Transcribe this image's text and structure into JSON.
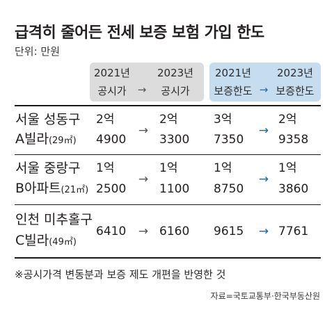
{
  "title": "급격히 줄어든 전세 보증 보험 가입 한도",
  "unit": "단위: 만원",
  "header": {
    "col1": [
      "2021년",
      "공시가"
    ],
    "col2": [
      "2023년",
      "공시가"
    ],
    "col3": [
      "2021년",
      "보증한도"
    ],
    "col4": [
      "2023년",
      "보증한도"
    ],
    "arrow": "→"
  },
  "arrow": "→",
  "chart_data": {
    "type": "table",
    "columns": [
      "2021년 공시가",
      "2023년 공시가",
      "2021년 보증한도",
      "2023년 보증한도"
    ],
    "rows": [
      {
        "name_line1": "서울 성동구",
        "name_line2": "A빌라",
        "area": "(29㎡)",
        "v2021_price": [
          "2억",
          "4900"
        ],
        "v2023_price": [
          "2억",
          "3300"
        ],
        "v2021_limit": [
          "3억",
          "7350"
        ],
        "v2023_limit": [
          "2억",
          "9358"
        ]
      },
      {
        "name_line1": "서울 중랑구",
        "name_line2": "B아파트",
        "area": "(21㎡)",
        "v2021_price": [
          "1억",
          "2500"
        ],
        "v2023_price": [
          "1억",
          "1100"
        ],
        "v2021_limit": [
          "1억",
          "8750"
        ],
        "v2023_limit": [
          "1억",
          "3860"
        ]
      },
      {
        "name_line1": "인천 미추홀구",
        "name_line2": "C빌라",
        "area": "(49㎡)",
        "v2021_price": [
          "6410"
        ],
        "v2023_price": [
          "6160"
        ],
        "v2021_limit": [
          "9615"
        ],
        "v2023_limit": [
          "7761"
        ]
      }
    ],
    "colors": {
      "price_header": "#dcdcdc",
      "limit_header": "#c6dcef",
      "limit_arrow": "#1f6aa8"
    }
  },
  "footnote": "※공시가격 변동분과 보증 제도 개편을 반영한 것",
  "source": "자료=국토교통부·한국부동산원"
}
